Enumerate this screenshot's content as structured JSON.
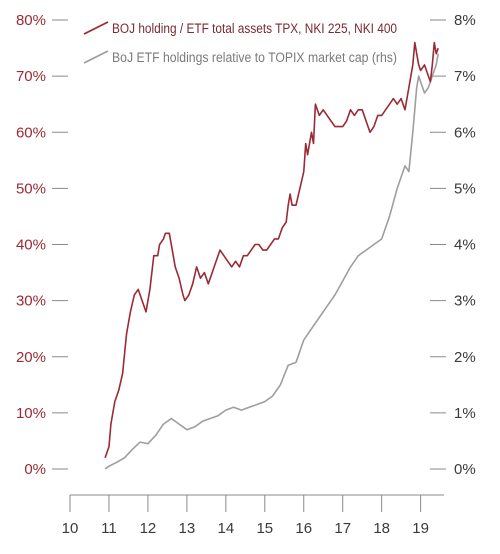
{
  "colors": {
    "left_series": "#9a2a35",
    "right_series": "#9e9e9e",
    "left_axis_text": "#9a2a35",
    "right_axis_text": "#3a3a3a",
    "bottom_axis_text": "#3a3a3a",
    "tick": "#8a8a8a"
  },
  "chart_data": {
    "type": "line",
    "title": "",
    "xlabel": "",
    "ylabel_left": "",
    "ylabel_right": "",
    "grid": false,
    "legend_position": "top-left",
    "x_ticks": [
      "10",
      "11",
      "12",
      "13",
      "14",
      "15",
      "16",
      "17",
      "18",
      "19"
    ],
    "x_range": [
      10,
      19.6
    ],
    "y_left": {
      "range": [
        0,
        80
      ],
      "ticks": [
        "0%",
        "10%",
        "20%",
        "30%",
        "40%",
        "50%",
        "60%",
        "70%",
        "80%"
      ]
    },
    "y_right": {
      "range": [
        0,
        8
      ],
      "ticks": [
        "0%",
        "1%",
        "2%",
        "3%",
        "4%",
        "5%",
        "6%",
        "7%",
        "8%"
      ]
    },
    "series": [
      {
        "name": "BOJ holding / ETF total assets TPX, NKI 225, NKI 400",
        "axis": "left",
        "x": [
          10.9,
          11.0,
          11.05,
          11.15,
          11.25,
          11.35,
          11.45,
          11.55,
          11.65,
          11.75,
          11.85,
          11.95,
          12.05,
          12.15,
          12.25,
          12.3,
          12.4,
          12.45,
          12.55,
          12.6,
          12.7,
          12.8,
          12.9,
          12.95,
          13.05,
          13.15,
          13.25,
          13.35,
          13.45,
          13.55,
          13.65,
          13.75,
          13.85,
          13.95,
          14.05,
          14.15,
          14.25,
          14.35,
          14.45,
          14.55,
          14.65,
          14.75,
          14.85,
          14.95,
          15.05,
          15.15,
          15.25,
          15.35,
          15.45,
          15.55,
          15.6,
          15.65,
          15.7,
          15.8,
          15.9,
          16.0,
          16.05,
          16.1,
          16.2,
          16.25,
          16.3,
          16.4,
          16.5,
          16.6,
          16.7,
          16.8,
          16.9,
          17.0,
          17.1,
          17.2,
          17.3,
          17.4,
          17.5,
          17.6,
          17.7,
          17.8,
          17.9,
          18.0,
          18.1,
          18.2,
          18.3,
          18.4,
          18.5,
          18.6,
          18.7,
          18.8,
          18.85,
          18.9,
          18.95,
          19.0,
          19.1,
          19.2,
          19.25,
          19.3,
          19.35,
          19.4,
          19.45
        ],
        "values": [
          2,
          4,
          8,
          12,
          14,
          17,
          24,
          28,
          31,
          32,
          30,
          28,
          32,
          38,
          38,
          40,
          41,
          42,
          42,
          40,
          36,
          34,
          31,
          30,
          31,
          33,
          36,
          34,
          35,
          33,
          35,
          37,
          39,
          38,
          37,
          36,
          37,
          36,
          38,
          38,
          39,
          40,
          40,
          39,
          39,
          40,
          41,
          41,
          43,
          44,
          47,
          49,
          47,
          47,
          50,
          53,
          58,
          56,
          60,
          58,
          65,
          63,
          64,
          63,
          62,
          61,
          61,
          61,
          62,
          64,
          63,
          64,
          64,
          62,
          60,
          61,
          63,
          63,
          64,
          65,
          66,
          65,
          66,
          64,
          68,
          72,
          76,
          74,
          72,
          71,
          72,
          70,
          69,
          72,
          76,
          74,
          75
        ]
      },
      {
        "name": "BoJ ETF holdings relative to TOPIX market cap (rhs)",
        "axis": "right",
        "x": [
          10.9,
          11.0,
          11.2,
          11.4,
          11.6,
          11.8,
          12.0,
          12.2,
          12.4,
          12.6,
          12.8,
          13.0,
          13.2,
          13.4,
          13.6,
          13.8,
          14.0,
          14.2,
          14.4,
          14.6,
          14.8,
          15.0,
          15.2,
          15.4,
          15.6,
          15.8,
          16.0,
          16.2,
          16.4,
          16.6,
          16.8,
          17.0,
          17.2,
          17.4,
          17.6,
          17.8,
          18.0,
          18.2,
          18.4,
          18.6,
          18.7,
          18.8,
          18.9,
          18.95,
          19.0,
          19.1,
          19.2,
          19.3,
          19.4,
          19.45
        ],
        "values": [
          0.0,
          0.05,
          0.12,
          0.2,
          0.35,
          0.48,
          0.45,
          0.6,
          0.8,
          0.9,
          0.8,
          0.7,
          0.75,
          0.85,
          0.9,
          0.95,
          1.05,
          1.1,
          1.05,
          1.1,
          1.15,
          1.2,
          1.3,
          1.5,
          1.85,
          1.9,
          2.3,
          2.5,
          2.7,
          2.9,
          3.1,
          3.35,
          3.6,
          3.8,
          3.9,
          4.0,
          4.1,
          4.5,
          5.0,
          5.4,
          5.3,
          6.0,
          6.8,
          7.0,
          6.9,
          6.7,
          6.8,
          7.0,
          7.2,
          7.4
        ]
      }
    ]
  }
}
